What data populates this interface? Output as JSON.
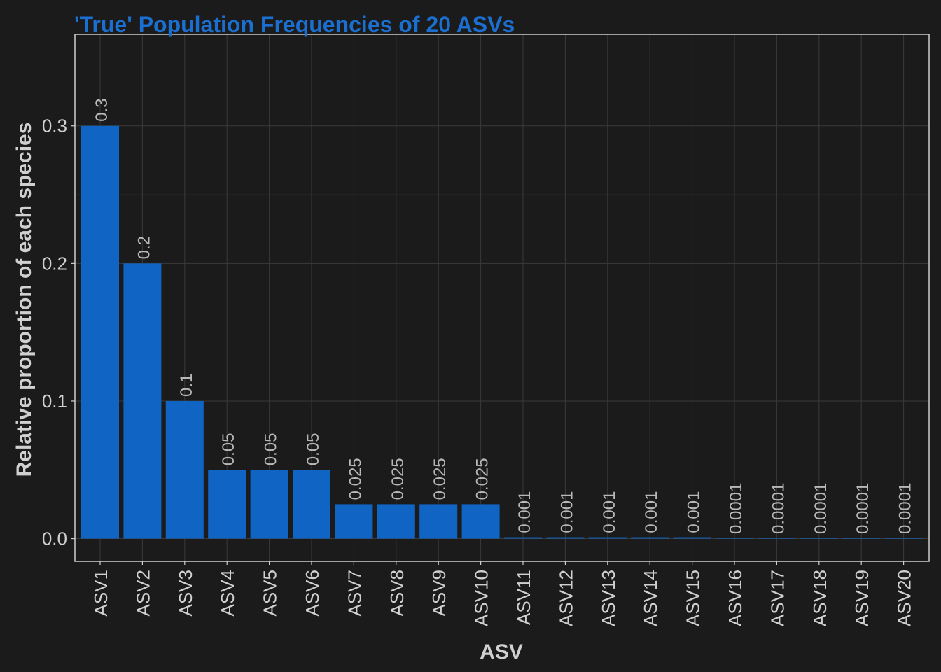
{
  "chart_data": {
    "type": "bar",
    "title": "'True' Population Frequencies of 20 ASVs",
    "xlabel": "ASV",
    "ylabel": "Relative proportion of each species",
    "categories": [
      "ASV1",
      "ASV2",
      "ASV3",
      "ASV4",
      "ASV5",
      "ASV6",
      "ASV7",
      "ASV8",
      "ASV9",
      "ASV10",
      "ASV11",
      "ASV12",
      "ASV13",
      "ASV14",
      "ASV15",
      "ASV16",
      "ASV17",
      "ASV18",
      "ASV19",
      "ASV20"
    ],
    "values": [
      0.3,
      0.2,
      0.1,
      0.05,
      0.05,
      0.05,
      0.025,
      0.025,
      0.025,
      0.025,
      0.001,
      0.001,
      0.001,
      0.001,
      0.001,
      0.0001,
      0.0001,
      0.0001,
      0.0001,
      0.0001
    ],
    "data_labels": [
      "0.3",
      "0.2",
      "0.1",
      "0.05",
      "0.05",
      "0.05",
      "0.025",
      "0.025",
      "0.025",
      "0.025",
      "0.001",
      "0.001",
      "0.001",
      "0.001",
      "0.001",
      "0.0001",
      "0.0001",
      "0.0001",
      "0.0001",
      "0.0001"
    ],
    "yticks": [
      0.0,
      0.1,
      0.2,
      0.3
    ],
    "ytick_labels": [
      "0.0",
      "0.1",
      "0.2",
      "0.3"
    ],
    "ylim": [
      -0.0165,
      0.3665
    ],
    "grid": true,
    "colors": {
      "background": "#1b1b1b",
      "bar": "#1065c4",
      "title": "#1a6fd0",
      "grid": "#3a3a3a",
      "panel_border": "#cfcfcf",
      "text": "#d0d0d0",
      "data_label": "#b8b8b8"
    }
  }
}
